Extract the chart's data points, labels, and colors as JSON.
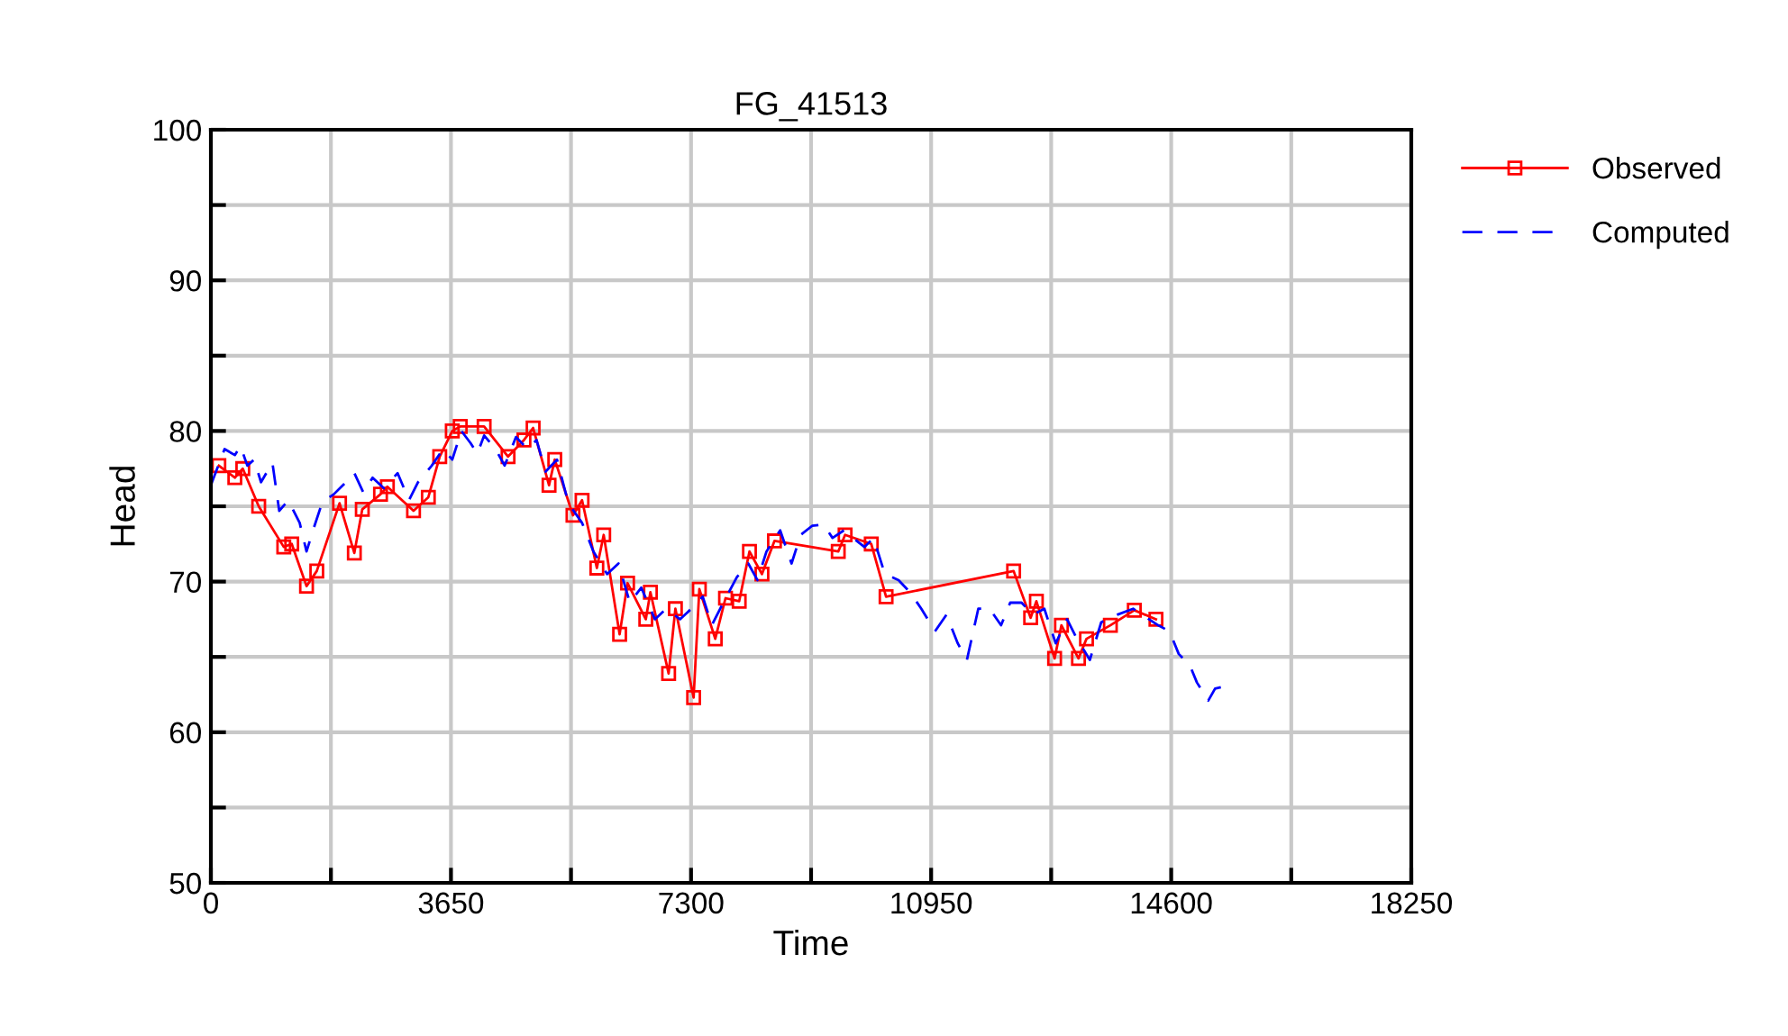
{
  "chart_data": {
    "type": "line",
    "title": "FG_41513",
    "xlabel": "Time",
    "ylabel": "Head",
    "xlim": [
      0,
      18250
    ],
    "ylim": [
      50,
      100
    ],
    "xticks": [
      0,
      {
        "value": 1825,
        "label": null
      },
      3650,
      {
        "value": 5475,
        "label": null
      },
      7300,
      {
        "value": 9125,
        "label": null
      },
      10950,
      {
        "value": 12775,
        "label": null
      },
      14600,
      {
        "value": 16425,
        "label": null
      },
      18250
    ],
    "yticks": [
      50,
      {
        "value": 55,
        "label": null
      },
      60,
      {
        "value": 65,
        "label": null
      },
      70,
      {
        "value": 75,
        "label": null
      },
      80,
      {
        "value": 85,
        "label": null
      },
      90,
      {
        "value": 95,
        "label": null
      },
      100
    ],
    "grid": true,
    "legend": "top right",
    "series": [
      {
        "name": "Observed",
        "color": "#ff0000",
        "marker": "square",
        "line_style": "solid",
        "x": [
          121,
          364,
          485,
          727,
          1108,
          1229,
          1454,
          1610,
          1956,
          2181,
          2302,
          2579,
          2683,
          3081,
          3306,
          3479,
          3670,
          3791,
          4154,
          4518,
          4760,
          4899,
          5141,
          5228,
          5505,
          5643,
          5868,
          5972,
          6214,
          6335,
          6612,
          6682,
          6959,
          7062,
          7339,
          7426,
          7668,
          7824,
          8032,
          8188,
          8378,
          8568,
          9538,
          9642,
          10040,
          10265,
          12204,
          12463,
          12550,
          12827,
          12931,
          13190,
          13312,
          13675,
          14039,
          14368
        ],
        "values": [
          77.7,
          76.9,
          77.5,
          75.0,
          72.3,
          72.5,
          69.7,
          70.7,
          75.2,
          71.9,
          74.8,
          75.8,
          76.3,
          74.7,
          75.6,
          78.3,
          80.0,
          80.3,
          80.3,
          78.3,
          79.4,
          80.2,
          76.4,
          78.1,
          74.4,
          75.4,
          70.9,
          73.1,
          66.5,
          69.9,
          67.5,
          69.3,
          63.9,
          68.2,
          62.3,
          69.5,
          66.2,
          68.9,
          68.7,
          72.0,
          70.5,
          72.7,
          72.0,
          73.1,
          72.5,
          69.0,
          70.7,
          67.6,
          68.7,
          64.9,
          67.1,
          64.9,
          66.2,
          67.1,
          68.1,
          67.5
        ]
      },
      {
        "name": "Computed",
        "color": "#0000ff",
        "marker": "none",
        "line_style": "dashed",
        "x": [
          0,
          208,
          364,
          450,
          554,
          658,
          762,
          935,
          1039,
          1177,
          1350,
          1454,
          1575,
          1696,
          1869,
          2008,
          2181,
          2320,
          2458,
          2631,
          2839,
          3012,
          3150,
          3358,
          3531,
          3670,
          3808,
          3947,
          4051,
          4154,
          4328,
          4466,
          4639,
          4812,
          4951,
          5089,
          5262,
          5435,
          5643,
          5816,
          6024,
          6197,
          6370,
          6543,
          6751,
          6924,
          7132,
          7305,
          7478,
          7616,
          7790,
          7997,
          8170,
          8309,
          8447,
          8655,
          8828,
          8967,
          9140,
          9313,
          9451,
          9624,
          9763,
          9936,
          10074,
          10247,
          10455,
          10628,
          10801,
          11009,
          11182,
          11355,
          11494,
          11667,
          11840,
          12013,
          12152,
          12325,
          12498,
          12671,
          12844,
          13017,
          13156,
          13363,
          13536,
          13779,
          14021,
          14229,
          14402,
          14575,
          14714,
          14887,
          14991,
          15164,
          15267,
          15371
        ],
        "values": [
          76.4,
          78.8,
          78.4,
          79.0,
          77.7,
          78.1,
          76.6,
          77.9,
          74.7,
          75.4,
          73.9,
          72.0,
          73.7,
          75.3,
          75.8,
          76.4,
          77.2,
          75.9,
          76.9,
          76.2,
          77.2,
          75.4,
          76.6,
          77.7,
          78.8,
          78.1,
          80.0,
          79.2,
          78.5,
          79.7,
          78.8,
          77.7,
          79.6,
          78.8,
          79.4,
          77.3,
          78.1,
          75.2,
          73.9,
          72.0,
          70.5,
          71.2,
          68.6,
          69.6,
          67.5,
          68.2,
          67.5,
          68.2,
          69.0,
          67.1,
          68.6,
          70.3,
          71.2,
          70.1,
          72.0,
          73.4,
          71.2,
          73.1,
          73.7,
          73.8,
          72.9,
          73.4,
          72.9,
          72.3,
          72.9,
          70.5,
          70.1,
          69.3,
          68.2,
          66.7,
          67.8,
          65.9,
          64.8,
          68.2,
          68.2,
          67.1,
          68.6,
          68.6,
          67.8,
          68.2,
          65.9,
          67.5,
          66.3,
          64.8,
          67.3,
          67.8,
          68.2,
          67.6,
          67.1,
          66.7,
          65.2,
          64.4,
          63.3,
          62.1,
          62.9,
          63.0
        ]
      }
    ]
  }
}
